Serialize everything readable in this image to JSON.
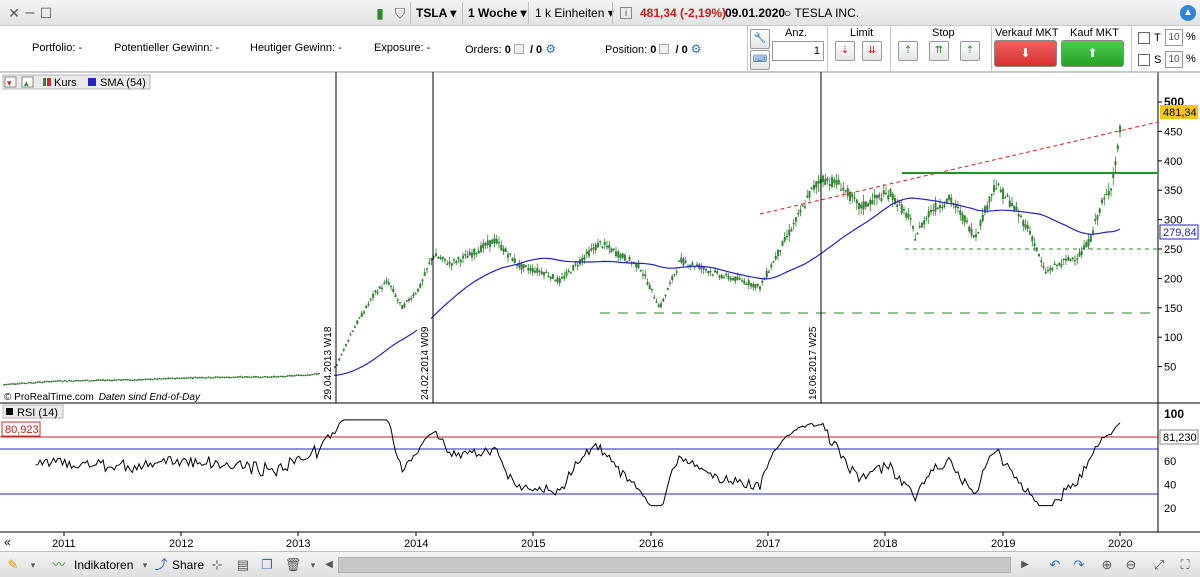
{
  "titlebar": {
    "symbol": "TSLA",
    "period": "1 Woche",
    "units": "1 k Einheiten",
    "info_icon": "i",
    "price_change": "481,34 (-2,19%)",
    "date": "09.01.2020",
    "name": "TESLA INC."
  },
  "positions": {
    "portfolio_label": "Portfolio:",
    "portfolio_value": "-",
    "pot_gain_label": "Potentieller Gewinn:",
    "pot_gain_value": "-",
    "today_gain_label": "Heutiger Gewinn:",
    "today_gain_value": "-",
    "exposure_label": "Exposure:",
    "exposure_value": "-",
    "orders_label": "Orders:",
    "orders_value": "0",
    "orders_slash": "/ 0",
    "position_label": "Position:",
    "position_value": "0",
    "position_slash": "/ 0"
  },
  "trade_panel": {
    "qty_label": "Anz.",
    "qty_value": "1",
    "limit_label": "Limit",
    "stop_label": "Stop",
    "sell_label": "Verkauf MKT",
    "buy_label": "Kauf MKT",
    "t_label": "T",
    "t_value": "10",
    "t_unit": "%",
    "s_label": "S",
    "s_value": "10",
    "s_unit": "%"
  },
  "legend": {
    "price_label": "Kurs",
    "sma_label": "SMA (54)",
    "rsi_label": "RSI (14)",
    "footer_source": "© ProRealTime.com",
    "footer_note": "Daten sind End-of-Day"
  },
  "price_axis": {
    "ticks": [
      "500",
      "450",
      "400",
      "350",
      "300",
      "250",
      "200",
      "150",
      "100",
      "50"
    ],
    "last_price": "481,34",
    "sma_value": "279,84"
  },
  "rsi_axis": {
    "ticks": [
      "100",
      "80",
      "60",
      "40",
      "20"
    ],
    "rsi_value_left": "80,923",
    "rsi_value_right": "81,230"
  },
  "time_axis": {
    "years": [
      "2011",
      "2012",
      "2013",
      "2014",
      "2015",
      "2016",
      "2017",
      "2018",
      "2019",
      "2020"
    ]
  },
  "vlines": [
    "29.04.2013 W18",
    "24.02.2014 W09",
    "19.06.2017 W25"
  ],
  "bottombar": {
    "indicators_label": "Indikatoren",
    "share_label": "Share",
    "nav_left": "«"
  },
  "colors": {
    "up_candle": "#2e8b2e",
    "down_candle": "#2e8b2e",
    "sma": "#2323c8",
    "resistance": "#1a9a1a",
    "trendline": "#e02020",
    "support": "#2a8a2a",
    "rsi": "#000000",
    "rsi_upper": "#c81e1e",
    "rsi_lower": "#2323c8",
    "price_badge": "#f5c518",
    "sell": "#e04040",
    "buy": "#2fb02f"
  }
}
